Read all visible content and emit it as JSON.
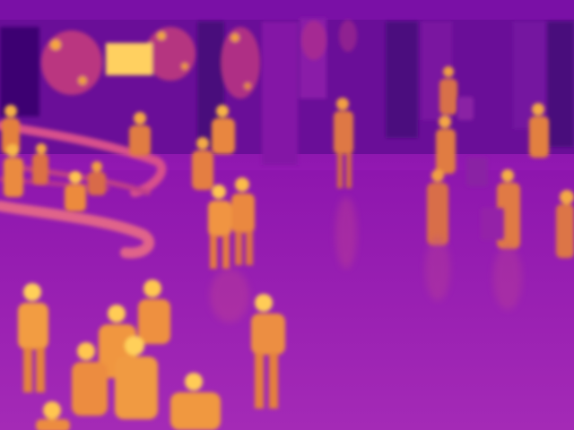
{
  "image": {
    "kind": "thermal-camera-frame",
    "palette": [
      "#3a0570",
      "#7a12a4",
      "#a020b6",
      "#d8408a",
      "#f07a40",
      "#ffc040",
      "#fff0a0"
    ]
  }
}
